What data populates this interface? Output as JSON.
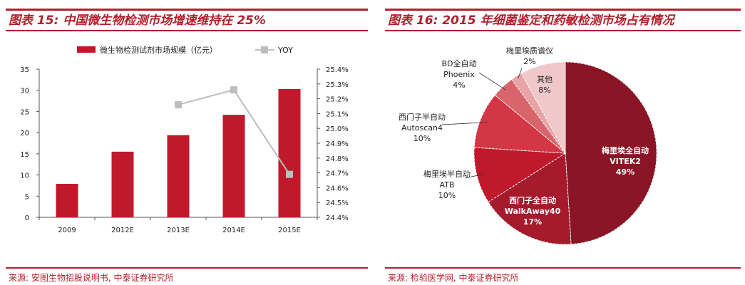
{
  "left": {
    "title": "图表 15: 中国微生物检测市场增速维持在 25%",
    "source": "来源: 安图生物招股说明书, 中泰证券研究所"
  },
  "right": {
    "title": "图表 16: 2015 年细菌鉴定和药敏检测市场占有情况",
    "source": "来源: 检验医学网, 中泰证券研究所"
  },
  "colors": {
    "brand": "#b11f2b",
    "bar": "#c0192c",
    "line": "#bdbdbd"
  },
  "chart_data": [
    {
      "type": "bar",
      "title": "图表 15: 中国微生物检测市场增速维持在 25%",
      "categories": [
        "2009",
        "2012E",
        "2013E",
        "2014E",
        "2015E"
      ],
      "series": [
        {
          "name": "微生物检测试剂市场规模（亿元）",
          "type": "bar",
          "axis": "left",
          "values": [
            7.9,
            15.5,
            19.4,
            24.2,
            30.3
          ]
        },
        {
          "name": "YOY",
          "type": "line",
          "axis": "right",
          "values": [
            null,
            null,
            0.2516,
            0.2526,
            0.2469
          ]
        }
      ],
      "left_axis": {
        "min": 0,
        "max": 35,
        "step": 5,
        "ticks": [
          "0",
          "5",
          "10",
          "15",
          "20",
          "25",
          "30",
          "35"
        ]
      },
      "right_axis": {
        "min": 0.244,
        "max": 0.254,
        "step": 0.001,
        "ticks": [
          "24.4%",
          "24.5%",
          "24.6%",
          "24.7%",
          "24.8%",
          "24.9%",
          "25.0%",
          "25.1%",
          "25.2%",
          "25.3%",
          "25.4%"
        ]
      },
      "legend_position": "top"
    },
    {
      "type": "pie",
      "title": "图表 16: 2015 年细菌鉴定和药敏检测市场占有情况",
      "slices": [
        {
          "name": "梅里埃全自动",
          "name2": "VITEK2",
          "label": "49%",
          "value": 49,
          "color": "#8a1525"
        },
        {
          "name": "西门子全自动",
          "name2": "WalkAway40",
          "label": "17%",
          "value": 17,
          "color": "#a51a2c"
        },
        {
          "name": "梅里埃半自动",
          "name2": "ATB",
          "label": "10%",
          "value": 10,
          "color": "#c0192c"
        },
        {
          "name": "西门子半自动",
          "name2": "Autoscan4",
          "label": "10%",
          "value": 10,
          "color": "#d33645"
        },
        {
          "name": "BD全自动",
          "name2": "Phoenix",
          "label": "4%",
          "value": 4,
          "color": "#d9656c"
        },
        {
          "name": "梅里埃质谱仪",
          "name2": "",
          "label": "2%",
          "value": 2,
          "color": "#e8a3a6"
        },
        {
          "name": "其他",
          "name2": "",
          "label": "8%",
          "value": 8,
          "color": "#f0c8ca"
        }
      ]
    }
  ]
}
